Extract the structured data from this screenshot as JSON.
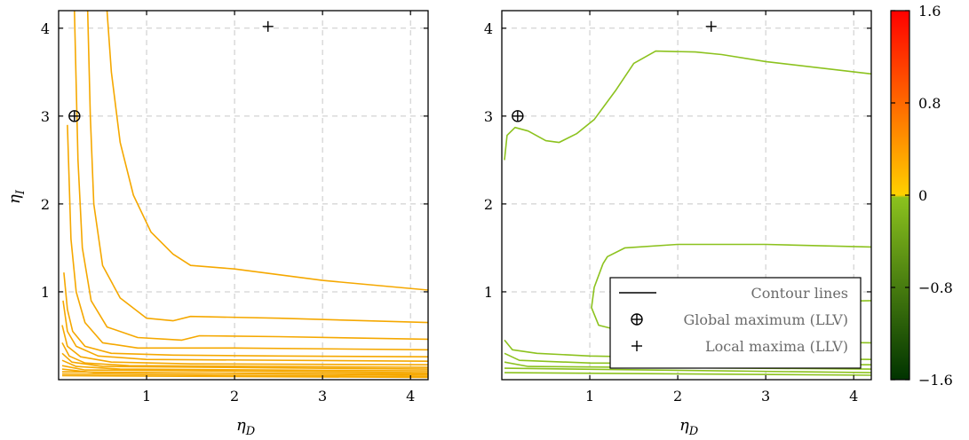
{
  "chart_data": [
    {
      "type": "contour",
      "xlabel": "η",
      "xlabel_sub": "D",
      "ylabel": "η",
      "ylabel_sub": "I",
      "xlim": [
        0,
        4.2
      ],
      "ylim": [
        0,
        4.2
      ],
      "xticks": [
        "1",
        "2",
        "3",
        "4"
      ],
      "xtick_values": [
        1,
        2,
        3,
        4
      ],
      "yticks": [
        "1",
        "2",
        "3",
        "4"
      ],
      "ytick_values": [
        1,
        2,
        3,
        4
      ],
      "grid": true,
      "line_color": "#f5a800",
      "global_maximum": {
        "x": 0.18,
        "y": 3.0
      },
      "local_maxima": [
        {
          "x": 2.38,
          "y": 4.02
        }
      ],
      "contours": [
        [
          [
            0.55,
            4.2
          ],
          [
            0.6,
            3.5
          ],
          [
            0.7,
            2.7
          ],
          [
            0.85,
            2.1
          ],
          [
            1.05,
            1.68
          ],
          [
            1.3,
            1.43
          ],
          [
            1.5,
            1.3
          ],
          [
            2.0,
            1.26
          ],
          [
            3.0,
            1.13
          ],
          [
            4.2,
            1.02
          ]
        ],
        [
          [
            0.33,
            4.2
          ],
          [
            0.36,
            3.0
          ],
          [
            0.4,
            2.0
          ],
          [
            0.5,
            1.3
          ],
          [
            0.7,
            0.93
          ],
          [
            1.0,
            0.7
          ],
          [
            1.3,
            0.67
          ],
          [
            1.5,
            0.72
          ],
          [
            2.5,
            0.7
          ],
          [
            4.2,
            0.65
          ]
        ],
        [
          [
            0.18,
            4.2
          ],
          [
            0.22,
            2.5
          ],
          [
            0.27,
            1.5
          ],
          [
            0.37,
            0.9
          ],
          [
            0.55,
            0.6
          ],
          [
            0.9,
            0.48
          ],
          [
            1.4,
            0.45
          ],
          [
            1.6,
            0.5
          ],
          [
            2.5,
            0.49
          ],
          [
            4.2,
            0.46
          ]
        ],
        [
          [
            0.1,
            2.9
          ],
          [
            0.14,
            1.6
          ],
          [
            0.2,
            1.0
          ],
          [
            0.3,
            0.65
          ],
          [
            0.5,
            0.42
          ],
          [
            0.9,
            0.36
          ],
          [
            2.0,
            0.36
          ],
          [
            4.2,
            0.34
          ]
        ],
        [
          [
            0.06,
            1.22
          ],
          [
            0.1,
            0.8
          ],
          [
            0.16,
            0.55
          ],
          [
            0.3,
            0.38
          ],
          [
            0.6,
            0.3
          ],
          [
            1.3,
            0.28
          ],
          [
            2.5,
            0.27
          ],
          [
            4.2,
            0.26
          ]
        ],
        [
          [
            0.05,
            0.9
          ],
          [
            0.1,
            0.55
          ],
          [
            0.2,
            0.38
          ],
          [
            0.45,
            0.27
          ],
          [
            1.0,
            0.23
          ],
          [
            4.2,
            0.21
          ]
        ],
        [
          [
            0.04,
            0.62
          ],
          [
            0.1,
            0.38
          ],
          [
            0.25,
            0.26
          ],
          [
            0.6,
            0.2
          ],
          [
            1.5,
            0.18
          ],
          [
            4.2,
            0.17
          ]
        ],
        [
          [
            0.04,
            0.42
          ],
          [
            0.12,
            0.27
          ],
          [
            0.3,
            0.19
          ],
          [
            0.8,
            0.16
          ],
          [
            4.2,
            0.14
          ]
        ],
        [
          [
            0.04,
            0.3
          ],
          [
            0.15,
            0.2
          ],
          [
            0.5,
            0.15
          ],
          [
            4.2,
            0.12
          ]
        ],
        [
          [
            0.04,
            0.22
          ],
          [
            0.2,
            0.15
          ],
          [
            0.7,
            0.12
          ],
          [
            4.2,
            0.1
          ]
        ],
        [
          [
            0.04,
            0.16
          ],
          [
            0.3,
            0.11
          ],
          [
            4.2,
            0.08
          ]
        ],
        [
          [
            0.04,
            0.12
          ],
          [
            0.4,
            0.08
          ],
          [
            4.2,
            0.065
          ]
        ],
        [
          [
            0.04,
            0.09
          ],
          [
            4.2,
            0.05
          ]
        ],
        [
          [
            0.04,
            0.065
          ],
          [
            4.2,
            0.035
          ]
        ],
        [
          [
            0.04,
            0.045
          ],
          [
            4.2,
            0.025
          ]
        ]
      ]
    },
    {
      "type": "contour",
      "xlabel": "η",
      "xlabel_sub": "D",
      "xlim": [
        0,
        4.2
      ],
      "ylim": [
        0,
        4.2
      ],
      "xticks": [
        "1",
        "2",
        "3",
        "4"
      ],
      "xtick_values": [
        1,
        2,
        3,
        4
      ],
      "yticks": [
        "1",
        "2",
        "3",
        "4"
      ],
      "ytick_values": [
        1,
        2,
        3,
        4
      ],
      "grid": true,
      "line_color": "#8cc21e",
      "global_maximum": {
        "x": 0.18,
        "y": 3.0
      },
      "local_maxima": [
        {
          "x": 2.38,
          "y": 4.02
        }
      ],
      "contours": [
        [
          [
            0.03,
            2.5
          ],
          [
            0.06,
            2.78
          ],
          [
            0.15,
            2.87
          ],
          [
            0.3,
            2.83
          ],
          [
            0.5,
            2.72
          ],
          [
            0.65,
            2.7
          ],
          [
            0.85,
            2.8
          ],
          [
            1.05,
            2.96
          ],
          [
            1.3,
            3.3
          ],
          [
            1.5,
            3.6
          ],
          [
            1.75,
            3.74
          ],
          [
            2.2,
            3.73
          ],
          [
            2.5,
            3.7
          ],
          [
            3.0,
            3.62
          ],
          [
            4.2,
            3.48
          ]
        ],
        [
          [
            1.15,
            1.32
          ],
          [
            1.2,
            1.4
          ],
          [
            1.4,
            1.5
          ],
          [
            2.0,
            1.54
          ],
          [
            3.0,
            1.54
          ],
          [
            4.2,
            1.51
          ]
        ],
        [
          [
            1.15,
            1.32
          ],
          [
            1.05,
            1.05
          ],
          [
            1.02,
            0.82
          ],
          [
            1.1,
            0.62
          ],
          [
            1.5,
            0.52
          ],
          [
            2.3,
            0.45
          ],
          [
            3.2,
            0.43
          ],
          [
            4.2,
            0.42
          ]
        ],
        [
          [
            2.0,
            0.76
          ],
          [
            2.5,
            0.83
          ],
          [
            3.1,
            0.88
          ],
          [
            4.2,
            0.9
          ]
        ],
        [
          [
            0.03,
            0.45
          ],
          [
            0.12,
            0.34
          ],
          [
            0.4,
            0.3
          ],
          [
            1.0,
            0.27
          ],
          [
            2.0,
            0.25
          ],
          [
            4.2,
            0.23
          ]
        ],
        [
          [
            0.03,
            0.3
          ],
          [
            0.2,
            0.22
          ],
          [
            1.0,
            0.19
          ],
          [
            4.2,
            0.17
          ]
        ],
        [
          [
            0.03,
            0.2
          ],
          [
            0.3,
            0.15
          ],
          [
            4.2,
            0.12
          ]
        ],
        [
          [
            0.03,
            0.13
          ],
          [
            4.2,
            0.08
          ]
        ],
        [
          [
            0.03,
            0.08
          ],
          [
            4.2,
            0.05
          ]
        ]
      ],
      "legend": {
        "placement": "bottom-right",
        "entries": [
          {
            "marker": "line",
            "label": "Contour lines"
          },
          {
            "marker": "circled-plus",
            "label": "Global maximum (LLV)"
          },
          {
            "marker": "plus",
            "label": "Local maxima (LLV)"
          }
        ]
      }
    },
    {
      "type": "colorbar",
      "range": [
        -1.6,
        1.6
      ],
      "ticks": [
        "1.6",
        "0.8",
        "0",
        "−0.8",
        "−1.6"
      ],
      "tick_values": [
        1.6,
        0.8,
        0,
        -0.8,
        -1.6
      ],
      "stops": [
        {
          "value": 1.6,
          "color": "#ff0000"
        },
        {
          "value": 0.0,
          "color": "#ffd000"
        },
        {
          "value": -0.02,
          "color": "#8cc21e"
        },
        {
          "value": -1.6,
          "color": "#003300"
        }
      ]
    }
  ]
}
